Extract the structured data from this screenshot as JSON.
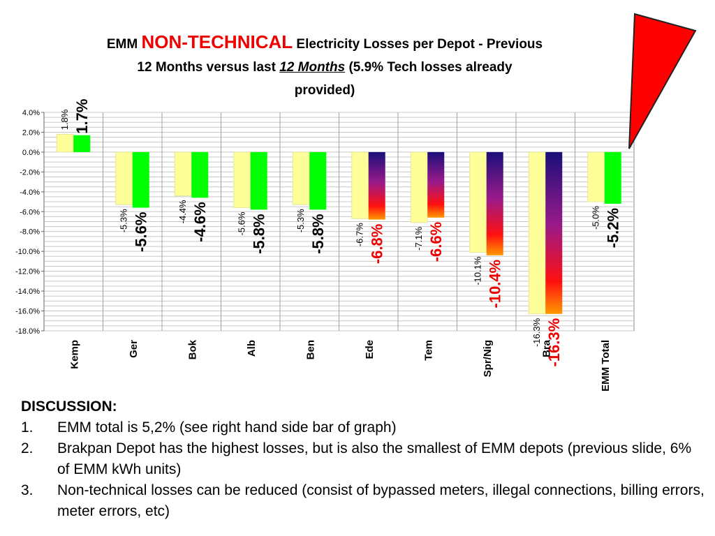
{
  "title": {
    "prefix": "EMM",
    "highlight": "NON-TECHNICAL",
    "rest_line1": "Electricity Losses per Depot - Previous",
    "line2_a": "12 Months versus last",
    "line2_ul": "12 Months",
    "line2_b": "(5.9% Tech losses already",
    "line3": "provided)"
  },
  "chart_data": {
    "type": "bar",
    "categories": [
      "Kemp",
      "Ger",
      "Bok",
      "Alb",
      "Ben",
      "Ede",
      "Tem",
      "Spr/Nig",
      "Bra",
      "EMM Total"
    ],
    "series": [
      {
        "values": [
          1.8,
          -5.3,
          -4.4,
          -5.6,
          -5.3,
          -6.7,
          -7.1,
          -10.1,
          -16.3,
          -5.0
        ],
        "color": "#ffff99"
      },
      {
        "values": [
          1.7,
          -5.6,
          -4.6,
          -5.8,
          -5.8,
          -6.8,
          -6.6,
          -10.4,
          -16.3,
          -5.2
        ],
        "color": "#00ff00"
      }
    ],
    "labels_previous": [
      "1.8%",
      "-5.3%",
      "-4.4%",
      "-5.6%",
      "-5.3%",
      "-6.7%",
      "-7.1%",
      "-10.1%",
      "-16.3%",
      "-5.0%"
    ],
    "labels_last": [
      "1.7%",
      "-5.6%",
      "-4.6%",
      "-5.8%",
      "-5.8%",
      "-6.8%",
      "-6.6%",
      "-10.4%",
      "-16.3%",
      "-5.2%"
    ],
    "label_last_colors": [
      "#000000",
      "#000000",
      "#000000",
      "#000000",
      "#000000",
      "#ee0000",
      "#ee0000",
      "#ee0000",
      "#ee0000",
      "#000000"
    ],
    "gradient_bars": [
      false,
      false,
      false,
      false,
      false,
      true,
      true,
      true,
      true,
      false
    ],
    "yticks": [
      "4.0%",
      "2.0%",
      "0.0%",
      "-2.0%",
      "-4.0%",
      "-6.0%",
      "-8.0%",
      "-10.0%",
      "-12.0%",
      "-14.0%",
      "-16.0%",
      "-18.0%"
    ],
    "ylim": [
      -18,
      4
    ],
    "grid": true,
    "title": "",
    "xlabel": "",
    "ylabel": ""
  },
  "discussion": {
    "heading": "DISCUSSION:",
    "items": [
      {
        "num": "1.",
        "text": "EMM total is 5,2% (see right hand side bar of graph)"
      },
      {
        "num": "2.",
        "text": "Brakpan Depot has the highest losses, but is also the smallest of EMM depots (previous slide, 6% of EMM kWh units)"
      },
      {
        "num": "3.",
        "text": "Non-technical losses can be reduced (consist of bypassed meters, illegal connections, billing errors, meter errors, etc)"
      }
    ]
  },
  "pointer": {
    "color": "#ff0000"
  }
}
